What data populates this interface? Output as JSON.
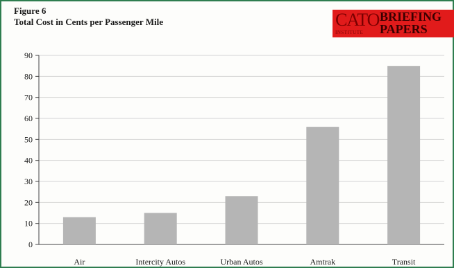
{
  "figure_label": "Figure 6",
  "logo": {
    "cato": "CATO",
    "institute": "INSTITUTE",
    "briefing": "BRIEFING",
    "papers": "PAPERS",
    "color": "#e11b1b"
  },
  "chart_data": {
    "type": "bar",
    "title": "Total Cost in Cents per Passenger Mile",
    "xlabel": "",
    "ylabel": "",
    "categories": [
      "Air",
      "Intercity Autos",
      "Urban Autos",
      "Amtrak",
      "Transit"
    ],
    "values": [
      13,
      15,
      23,
      56,
      85
    ],
    "ylim": [
      0,
      90
    ],
    "yticks": [
      0,
      10,
      20,
      30,
      40,
      50,
      60,
      70,
      80,
      90
    ],
    "grid": true,
    "bar_color": "#b5b5b5",
    "grid_color": "#d4d4d4"
  }
}
